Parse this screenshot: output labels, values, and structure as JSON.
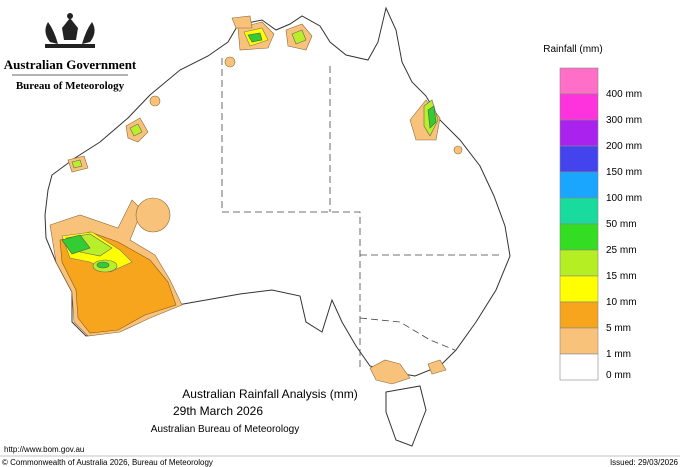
{
  "header": {
    "government": "Australian Government",
    "agency": "Bureau of Meteorology"
  },
  "legend": {
    "title": "Rainfall (mm)",
    "items": [
      {
        "color": "#ff6ec7",
        "label": "400 mm"
      },
      {
        "color": "#ff33dd",
        "label": "300 mm"
      },
      {
        "color": "#aa22ee",
        "label": "200 mm"
      },
      {
        "color": "#4444ee",
        "label": "150 mm"
      },
      {
        "color": "#1aa6ff",
        "label": "100 mm"
      },
      {
        "color": "#1adb9e",
        "label": "50 mm"
      },
      {
        "color": "#33dd22",
        "label": "25 mm"
      },
      {
        "color": "#b5ee22",
        "label": "15 mm"
      },
      {
        "color": "#ffff00",
        "label": "10 mm"
      },
      {
        "color": "#f7a51c",
        "label": "5 mm"
      },
      {
        "color": "#f9c27a",
        "label": "1 mm"
      },
      {
        "color": "#ffffff",
        "label": "0 mm"
      }
    ]
  },
  "title": {
    "line1": "Australian Rainfall Analysis (mm)",
    "line2": "29th March 2026",
    "line3": "Australian Bureau of Meteorology"
  },
  "footer": {
    "url": "http://www.bom.gov.au",
    "copyright": "© Commonwealth of Australia 2026, Bureau of Meteorology",
    "issued": "Issued: 29/03/2026"
  }
}
